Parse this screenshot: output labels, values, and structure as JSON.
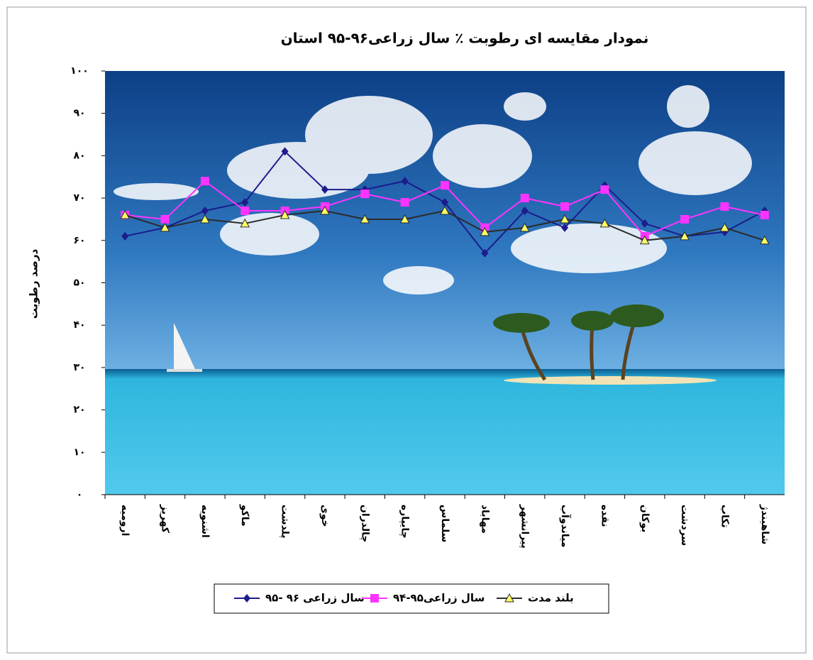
{
  "chart_data": {
    "type": "line",
    "title": "نمودار مقایسه ای رطوبت ٪ سال زراعی۹۶-۹۵ استان",
    "y_label": "درصد رطوبت",
    "categories": [
      "ارومیه",
      "کهریز",
      "اشنویه",
      "ماکو",
      "پلدشت",
      "خوی",
      "چالدران",
      "چایپاره",
      "سلماس",
      "مهاباد",
      "پیرانشهر",
      "میاندوآب",
      "نقده",
      "بوکان",
      "سردشت",
      "تکاب",
      "شاهیندژ"
    ],
    "series": [
      {
        "name": "سال زراعی ۹۶ -۹۵",
        "color": "#1c1c8c",
        "marker": "diamond",
        "values": [
          61,
          63,
          67,
          69,
          81,
          72,
          72,
          74,
          69,
          57,
          67,
          63,
          73,
          64,
          61,
          62,
          67
        ]
      },
      {
        "name": "سال زراعی۹۵-۹۴",
        "color": "#ff33ff",
        "marker": "square",
        "values": [
          66,
          65,
          74,
          67,
          67,
          68,
          71,
          69,
          73,
          63,
          70,
          68,
          72,
          61,
          65,
          68,
          66
        ]
      },
      {
        "name": "بلند مدت",
        "color": "#2b2b2b",
        "marker": "triangle",
        "marker_fill": "#ffff66",
        "values": [
          66,
          63,
          65,
          64,
          66,
          67,
          65,
          65,
          67,
          62,
          63,
          65,
          64,
          60,
          61,
          63,
          60
        ]
      }
    ],
    "ylim": [
      0,
      100
    ],
    "yticks": [
      {
        "value": 0,
        "label": "۰"
      },
      {
        "value": 10,
        "label": "۱۰"
      },
      {
        "value": 20,
        "label": "۲۰"
      },
      {
        "value": 30,
        "label": "۳۰"
      },
      {
        "value": 40,
        "label": "۴۰"
      },
      {
        "value": 50,
        "label": "۵۰"
      },
      {
        "value": 60,
        "label": "۶۰"
      },
      {
        "value": 70,
        "label": "۷۰"
      },
      {
        "value": 80,
        "label": "۸۰"
      },
      {
        "value": 90,
        "label": "۹۰"
      },
      {
        "value": 100,
        "label": "۱۰۰"
      }
    ],
    "legend": "bottom"
  }
}
